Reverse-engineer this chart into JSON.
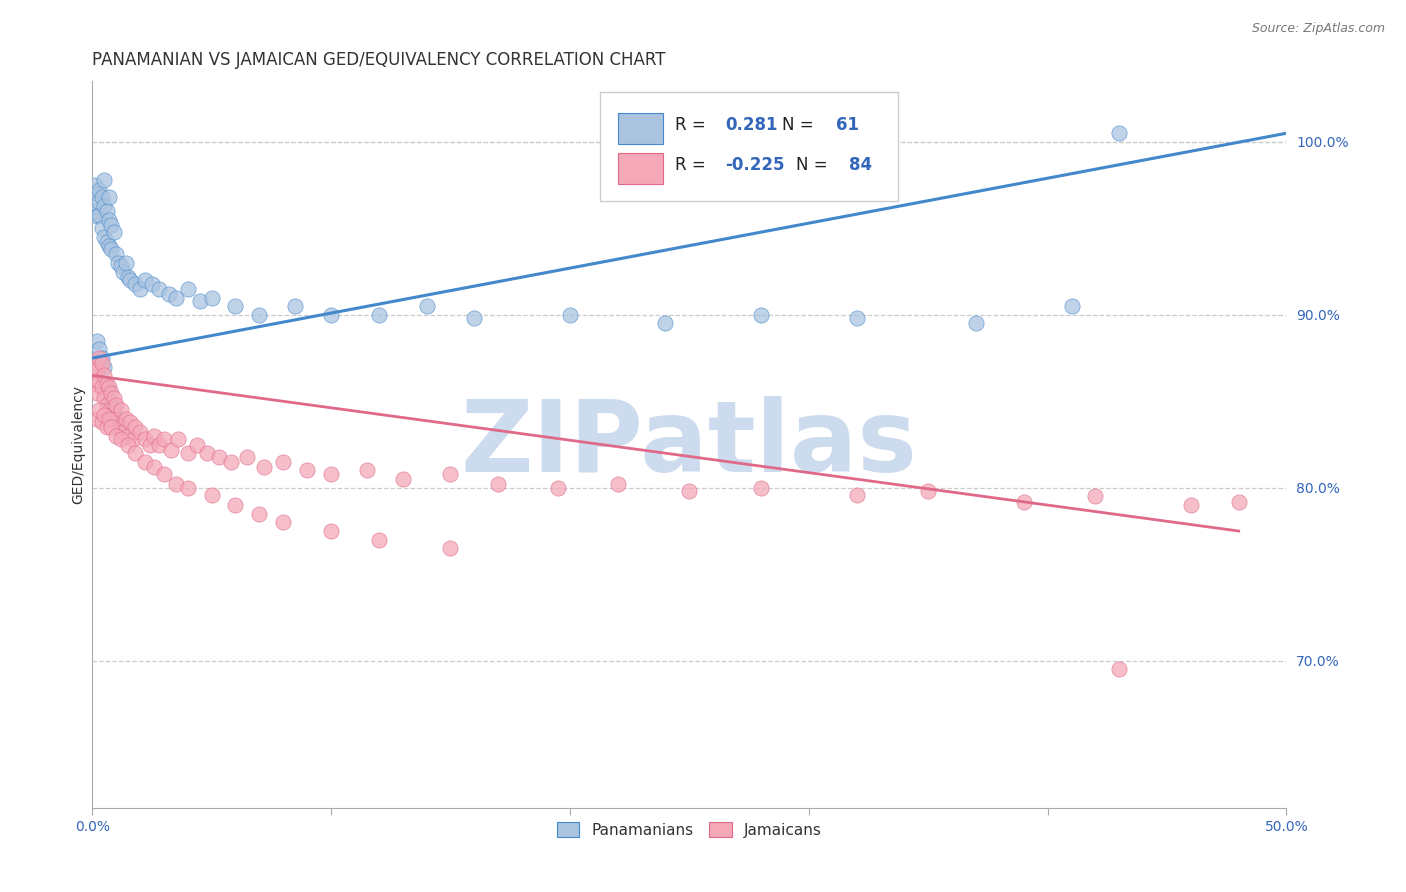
{
  "title": "PANAMANIAN VS JAMAICAN GED/EQUIVALENCY CORRELATION CHART",
  "source": "Source: ZipAtlas.com",
  "ylabel": "GED/Equivalency",
  "right_yticks": [
    "70.0%",
    "80.0%",
    "90.0%",
    "100.0%"
  ],
  "right_ytick_vals": [
    0.7,
    0.8,
    0.9,
    1.0
  ],
  "grid_ytick_vals": [
    0.7,
    0.8,
    0.9,
    1.0
  ],
  "xmin": 0.0,
  "xmax": 0.5,
  "ymin": 0.615,
  "ymax": 1.035,
  "pan_color": "#aac4e0",
  "jam_color": "#f4a8b8",
  "pan_edge_color": "#4488cc",
  "jam_edge_color": "#e06888",
  "pan_R": 0.281,
  "pan_N": 61,
  "jam_R": -0.225,
  "jam_N": 84,
  "watermark": "ZIPatlas",
  "watermark_color": "#ccdcee",
  "blue_text": "#3366bb",
  "pan_trend_x": [
    0.0,
    0.5
  ],
  "pan_trend_y": [
    0.875,
    1.005
  ],
  "jam_trend_x": [
    0.0,
    0.48
  ],
  "jam_trend_y": [
    0.865,
    0.775
  ],
  "grid_color": "#cccccc",
  "grid_linestyle": "--",
  "background_color": "#ffffff",
  "title_fontsize": 12,
  "axis_label_fontsize": 10,
  "tick_fontsize": 10,
  "source_fontsize": 9,
  "pan_scatter_x": [
    0.001,
    0.001,
    0.002,
    0.002,
    0.003,
    0.003,
    0.003,
    0.004,
    0.004,
    0.005,
    0.005,
    0.005,
    0.006,
    0.006,
    0.007,
    0.007,
    0.007,
    0.008,
    0.008,
    0.009,
    0.01,
    0.011,
    0.012,
    0.013,
    0.014,
    0.015,
    0.016,
    0.018,
    0.02,
    0.022,
    0.025,
    0.028,
    0.032,
    0.035,
    0.04,
    0.045,
    0.05,
    0.06,
    0.07,
    0.085,
    0.1,
    0.12,
    0.14,
    0.16,
    0.2,
    0.24,
    0.28,
    0.32,
    0.37,
    0.41,
    0.002,
    0.003,
    0.004,
    0.005,
    0.006,
    0.007,
    0.008,
    0.009,
    0.01,
    0.012,
    0.43
  ],
  "pan_scatter_y": [
    0.96,
    0.975,
    0.957,
    0.97,
    0.958,
    0.965,
    0.972,
    0.95,
    0.968,
    0.945,
    0.963,
    0.978,
    0.942,
    0.96,
    0.94,
    0.955,
    0.968,
    0.938,
    0.952,
    0.948,
    0.935,
    0.93,
    0.928,
    0.925,
    0.93,
    0.922,
    0.92,
    0.918,
    0.915,
    0.92,
    0.918,
    0.915,
    0.912,
    0.91,
    0.915,
    0.908,
    0.91,
    0.905,
    0.9,
    0.905,
    0.9,
    0.9,
    0.905,
    0.898,
    0.9,
    0.895,
    0.9,
    0.898,
    0.895,
    0.905,
    0.885,
    0.88,
    0.875,
    0.87,
    0.858,
    0.85,
    0.848,
    0.845,
    0.84,
    0.835,
    1.005
  ],
  "jam_scatter_x": [
    0.001,
    0.001,
    0.002,
    0.002,
    0.003,
    0.003,
    0.004,
    0.004,
    0.005,
    0.005,
    0.006,
    0.006,
    0.007,
    0.007,
    0.008,
    0.008,
    0.009,
    0.009,
    0.01,
    0.01,
    0.011,
    0.012,
    0.013,
    0.014,
    0.015,
    0.016,
    0.017,
    0.018,
    0.02,
    0.022,
    0.024,
    0.026,
    0.028,
    0.03,
    0.033,
    0.036,
    0.04,
    0.044,
    0.048,
    0.053,
    0.058,
    0.065,
    0.072,
    0.08,
    0.09,
    0.1,
    0.115,
    0.13,
    0.15,
    0.17,
    0.195,
    0.22,
    0.25,
    0.28,
    0.32,
    0.35,
    0.39,
    0.42,
    0.46,
    0.48,
    0.002,
    0.003,
    0.004,
    0.005,
    0.006,
    0.007,
    0.008,
    0.01,
    0.012,
    0.015,
    0.018,
    0.022,
    0.026,
    0.03,
    0.035,
    0.04,
    0.05,
    0.06,
    0.07,
    0.08,
    0.1,
    0.12,
    0.15,
    0.43
  ],
  "jam_scatter_y": [
    0.87,
    0.86,
    0.868,
    0.855,
    0.862,
    0.875,
    0.858,
    0.872,
    0.852,
    0.865,
    0.848,
    0.86,
    0.845,
    0.858,
    0.842,
    0.855,
    0.84,
    0.852,
    0.838,
    0.848,
    0.835,
    0.845,
    0.832,
    0.84,
    0.83,
    0.838,
    0.828,
    0.835,
    0.832,
    0.828,
    0.825,
    0.83,
    0.825,
    0.828,
    0.822,
    0.828,
    0.82,
    0.825,
    0.82,
    0.818,
    0.815,
    0.818,
    0.812,
    0.815,
    0.81,
    0.808,
    0.81,
    0.805,
    0.808,
    0.802,
    0.8,
    0.802,
    0.798,
    0.8,
    0.796,
    0.798,
    0.792,
    0.795,
    0.79,
    0.792,
    0.84,
    0.845,
    0.838,
    0.842,
    0.835,
    0.84,
    0.835,
    0.83,
    0.828,
    0.825,
    0.82,
    0.815,
    0.812,
    0.808,
    0.802,
    0.8,
    0.796,
    0.79,
    0.785,
    0.78,
    0.775,
    0.77,
    0.765,
    0.695
  ]
}
